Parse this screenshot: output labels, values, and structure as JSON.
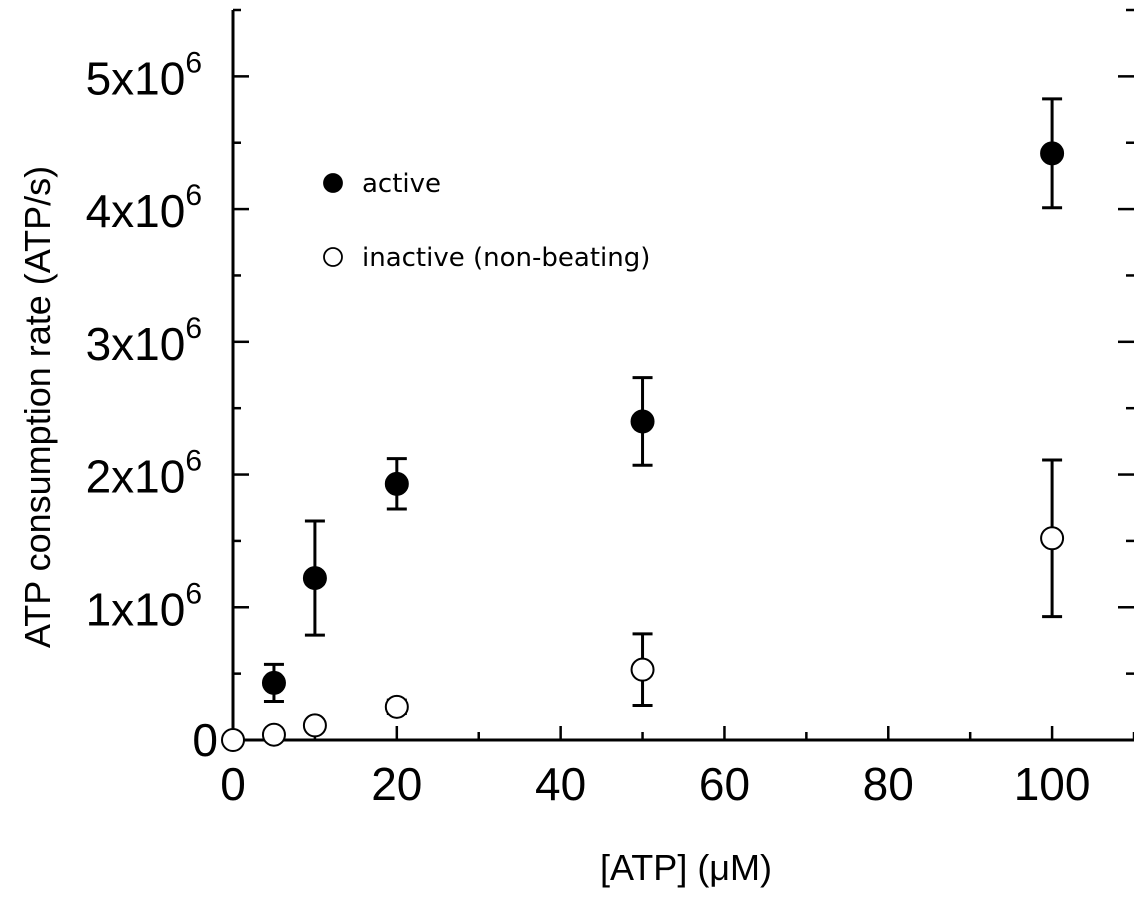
{
  "chart_data": {
    "type": "scatter",
    "xlabel": "[ATP] (μM)",
    "ylabel": "ATP consumption rate (ATP/s)",
    "xlim": [
      0,
      110
    ],
    "ylim": [
      0,
      5500000
    ],
    "x_ticks": [
      "0",
      "20",
      "40",
      "60",
      "80",
      "100"
    ],
    "y_ticks": [
      {
        "mantissa": "5x10",
        "exp": "6"
      },
      {
        "mantissa": "4x10",
        "exp": "6"
      },
      {
        "mantissa": "3x10",
        "exp": "6"
      },
      {
        "mantissa": "2x10",
        "exp": "6"
      },
      {
        "mantissa": "1x10",
        "exp": "6"
      },
      {
        "mantissa": "0",
        "exp": ""
      }
    ],
    "grid": false,
    "legend_position": "top-left",
    "series": [
      {
        "name": "active",
        "marker": "filled-circle",
        "color": "#000000",
        "points": [
          {
            "x": 5,
            "y": 430000,
            "err": 140000
          },
          {
            "x": 10,
            "y": 1220000,
            "err": 430000
          },
          {
            "x": 20,
            "y": 1930000,
            "err": 190000
          },
          {
            "x": 50,
            "y": 2400000,
            "err": 330000
          },
          {
            "x": 100,
            "y": 4420000,
            "err": 410000
          }
        ]
      },
      {
        "name": "inactive (non-beating)",
        "marker": "open-circle",
        "color": "#000000",
        "points": [
          {
            "x": 0,
            "y": 0,
            "err": 0
          },
          {
            "x": 5,
            "y": 40000,
            "err": 30000
          },
          {
            "x": 10,
            "y": 110000,
            "err": 40000
          },
          {
            "x": 20,
            "y": 250000,
            "err": 50000
          },
          {
            "x": 50,
            "y": 530000,
            "err": 270000
          },
          {
            "x": 100,
            "y": 1520000,
            "err": 590000
          }
        ]
      }
    ]
  }
}
